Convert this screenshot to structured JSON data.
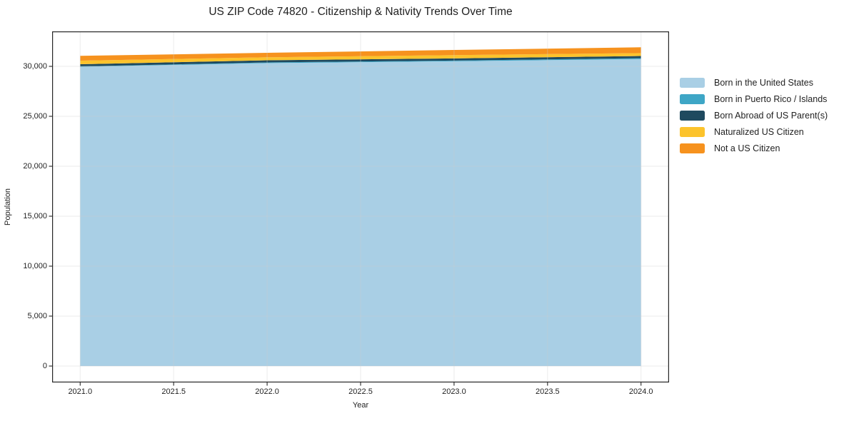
{
  "chart_data": {
    "type": "area",
    "stacked": true,
    "title": "US ZIP Code 74820 - Citizenship & Nativity Trends Over Time",
    "xlabel": "Year",
    "ylabel": "Population",
    "x": [
      2021,
      2022,
      2023,
      2024
    ],
    "series": [
      {
        "name": "Born in the United States",
        "color": "#A9CFE5",
        "values": [
          29950,
          30330,
          30510,
          30730
        ]
      },
      {
        "name": "Born in Puerto Rico / Islands",
        "color": "#3EA6C6",
        "values": [
          50,
          60,
          70,
          90
        ]
      },
      {
        "name": "Born Abroad of US Parent(s)",
        "color": "#1F4A5F",
        "values": [
          215,
          220,
          215,
          215
        ]
      },
      {
        "name": "Naturalized US Citizen",
        "color": "#FCC32C",
        "values": [
          355,
          300,
          330,
          290
        ]
      },
      {
        "name": "Not a US Citizen",
        "color": "#F6921E",
        "values": [
          480,
          450,
          520,
          580
        ]
      }
    ],
    "xtick_values": [
      2021.0,
      2021.5,
      2022.0,
      2022.5,
      2023.0,
      2023.5,
      2024.0
    ],
    "xtick_labels": [
      "2021.0",
      "2021.5",
      "2022.0",
      "2022.5",
      "2023.0",
      "2023.5",
      "2024.0"
    ],
    "ytick_values": [
      0,
      5000,
      10000,
      15000,
      20000,
      25000,
      30000
    ],
    "ytick_labels": [
      "0",
      "5,000",
      "10,000",
      "15,000",
      "20,000",
      "25,000",
      "30,000"
    ],
    "xlim": [
      2020.85,
      2024.15
    ],
    "ylim": [
      -1643,
      33500
    ],
    "grid": true,
    "legend_position": "outside-right",
    "legend_frame": false
  },
  "style": {
    "background": "#ffffff",
    "spine_color": "#262626",
    "grid_color": "#cccccc",
    "grid_opacity": 0.4,
    "text_color": "#1f1f1f"
  }
}
